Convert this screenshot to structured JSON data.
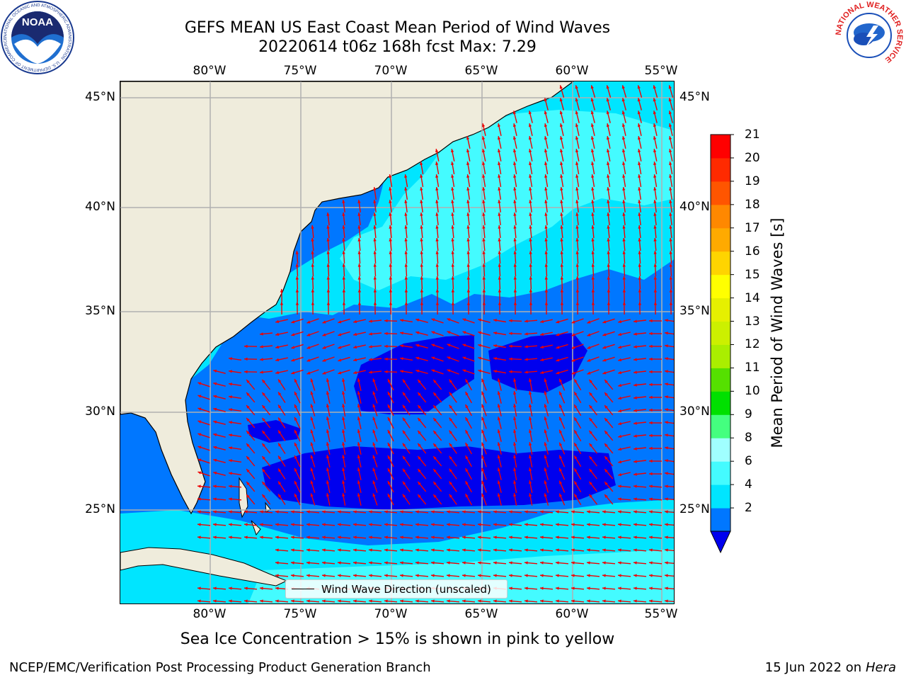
{
  "title": {
    "line1": "GEFS MEAN US East Coast Mean Period of Wind Waves",
    "line2": "20220614 t06z 168h fcst   Max: 7.29"
  },
  "map": {
    "lon_ticks": [
      "80°W",
      "75°W",
      "70°W",
      "65°W",
      "60°W",
      "55°W"
    ],
    "lat_ticks": [
      "45°N",
      "40°N",
      "35°N",
      "30°N",
      "25°N"
    ],
    "gridlines": true,
    "land_color": "#efecdc",
    "vector_color": "#ee0000",
    "legend_label": "Wind Wave Direction (unscaled)",
    "legend_placement": "bottom-center"
  },
  "colorbar": {
    "title": "Mean Period of Wind Waves [s]",
    "labels": [
      "21",
      "20",
      "19",
      "18",
      "17",
      "16",
      "15",
      "14",
      "13",
      "12",
      "11",
      "10",
      "9",
      "8",
      "6",
      "4",
      "2"
    ],
    "bins": [
      {
        "from": 2,
        "to": 4,
        "color": "#0077ff"
      },
      {
        "from": 4,
        "to": 6,
        "color": "#00e5ff"
      },
      {
        "from": 6,
        "to": 8,
        "color": "#44fbff"
      },
      {
        "from": 8,
        "to": 9,
        "color": "#a0ffff"
      },
      {
        "from": 9,
        "to": 10,
        "color": "#44ff7f"
      },
      {
        "from": 10,
        "to": 11,
        "color": "#00e000"
      },
      {
        "from": 11,
        "to": 12,
        "color": "#55e000"
      },
      {
        "from": 12,
        "to": 13,
        "color": "#aaee00"
      },
      {
        "from": 13,
        "to": 14,
        "color": "#ccf000"
      },
      {
        "from": 14,
        "to": 15,
        "color": "#e6f000"
      },
      {
        "from": 15,
        "to": 16,
        "color": "#ffff00"
      },
      {
        "from": 16,
        "to": 17,
        "color": "#ffd400"
      },
      {
        "from": 17,
        "to": 18,
        "color": "#ffaa00"
      },
      {
        "from": 18,
        "to": 19,
        "color": "#ff8800"
      },
      {
        "from": 19,
        "to": 20,
        "color": "#ff5500"
      },
      {
        "from": 20,
        "to": 21,
        "color": "#ff2a00"
      },
      {
        "from": 21,
        "to": 22,
        "color": "#ff0000"
      }
    ],
    "extend_color": "#0000ee"
  },
  "footnote": "Sea Ice Concentration > 15% is shown in pink to yellow",
  "footer": {
    "left": "NCEP/EMC/Verification Post Processing Product Generation Branch",
    "date": "15 Jun 2022 on",
    "machine": "Hera"
  },
  "logos": {
    "noaa_text": "NOAA",
    "noaa_ring": "NATIONAL OCEANIC AND ATMOSPHERIC ADMINISTRATION · U.S. DEPARTMENT OF COMMERCE",
    "nws_ring": "NATIONAL WEATHER SERVICE"
  }
}
